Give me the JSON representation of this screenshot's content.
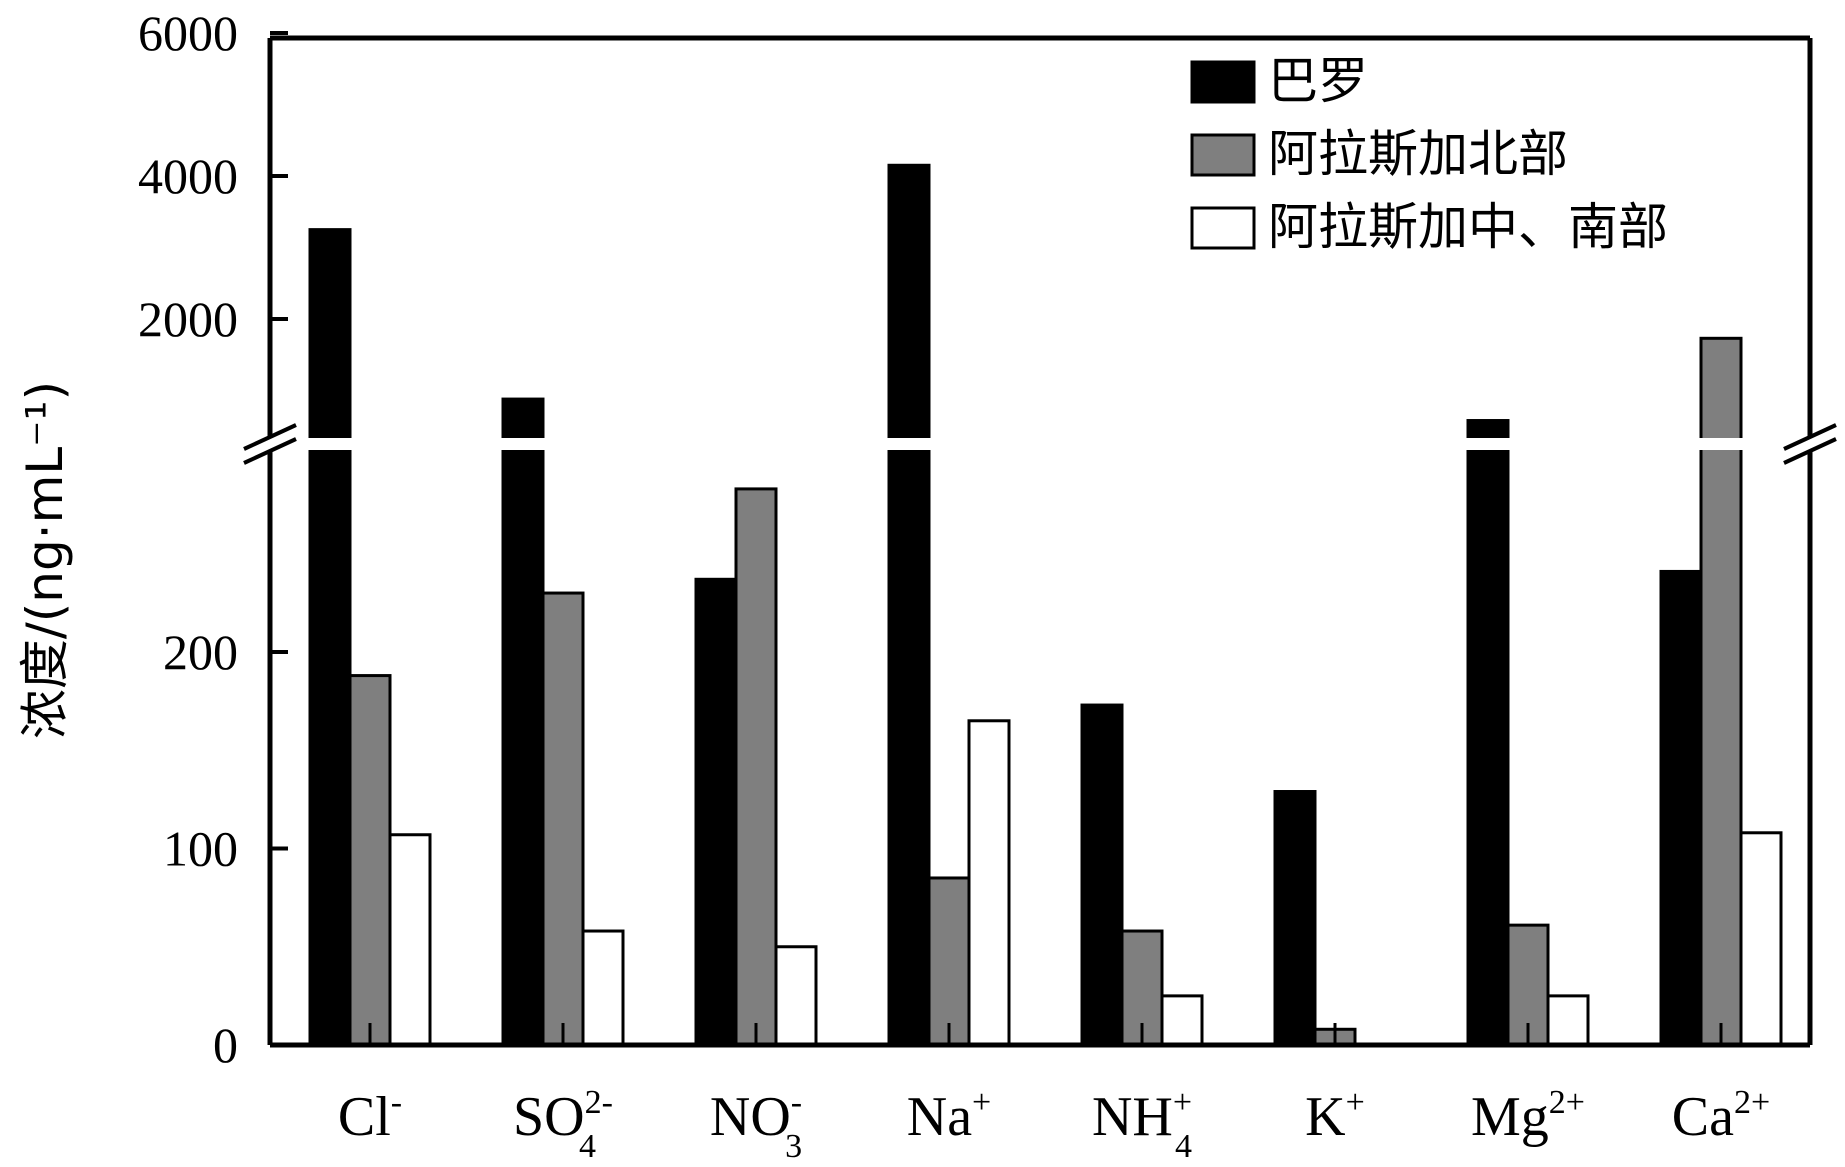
{
  "chart_data": {
    "type": "bar",
    "ylabel": "浓度/(ng·mL⁻¹)",
    "y_axis": {
      "broken": true,
      "lower_range": [
        0,
        300
      ],
      "upper_range": [
        600,
        6000
      ],
      "lower_ticks": [
        "0",
        "100",
        "200"
      ],
      "upper_ticks": [
        "2000",
        "4000",
        "6000"
      ]
    },
    "categories": [
      {
        "base": "Cl",
        "sup": "-",
        "sub": ""
      },
      {
        "base": "SO",
        "sup": "2-",
        "sub": "4"
      },
      {
        "base": "NO",
        "sup": "-",
        "sub": "3"
      },
      {
        "base": "Na",
        "sup": "+",
        "sub": ""
      },
      {
        "base": "NH",
        "sup": "+",
        "sub": "4"
      },
      {
        "base": "K",
        "sup": "+",
        "sub": ""
      },
      {
        "base": "Mg",
        "sup": "2+",
        "sub": ""
      },
      {
        "base": "Ca",
        "sup": "2+",
        "sub": ""
      }
    ],
    "series": [
      {
        "name": "巴罗",
        "color": "#000000",
        "values": [
          3250,
          880,
          237,
          4150,
          173,
          129,
          580,
          241
        ]
      },
      {
        "name": "阿拉斯加北部",
        "color": "#7f7f7f",
        "values": [
          188,
          230,
          283,
          85,
          58,
          8,
          61,
          1730
        ]
      },
      {
        "name": "阿拉斯加中、南部",
        "color": "#ffffff",
        "values": [
          107,
          58,
          50,
          165,
          25,
          0,
          25,
          108
        ]
      }
    ],
    "legend_position": "top-right",
    "grid": false
  }
}
